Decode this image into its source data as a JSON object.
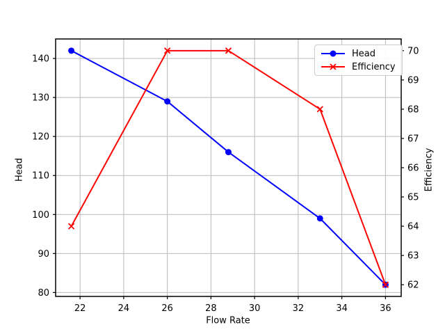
{
  "chart_data": {
    "type": "line",
    "title": "",
    "xlabel": "Flow Rate",
    "ylabel_left": "Head",
    "ylabel_right": "Efficiency",
    "x": [
      21.6,
      26,
      28.8,
      33,
      36
    ],
    "series": [
      {
        "name": "Head",
        "axis": "left",
        "color": "#0000ff",
        "marker": "circle",
        "values": [
          142,
          129,
          116,
          99,
          82
        ]
      },
      {
        "name": "Efficiency",
        "axis": "right",
        "color": "#ff0000",
        "marker": "x",
        "values": [
          64,
          70,
          70,
          68,
          62
        ]
      }
    ],
    "xlim": [
      20.88,
      36.72
    ],
    "xticks": [
      22,
      24,
      26,
      28,
      30,
      32,
      34,
      36
    ],
    "ylim_left": [
      79,
      145
    ],
    "yticks_left": [
      80,
      90,
      100,
      110,
      120,
      130,
      140
    ],
    "ylim_right": [
      61.6,
      70.4
    ],
    "yticks_right": [
      62,
      63,
      64,
      65,
      66,
      67,
      68,
      69,
      70
    ],
    "grid": true,
    "legend": {
      "position": "upper-right",
      "entries": [
        "Head",
        "Efficiency"
      ]
    }
  },
  "colors": {
    "background": "#ffffff",
    "spine": "#000000",
    "grid": "#b8b8b8",
    "tick_label": "#000000",
    "left_axis_label": "#0000ff",
    "right_axis_label": "#ff0000",
    "legend_border": "#cccccc"
  }
}
